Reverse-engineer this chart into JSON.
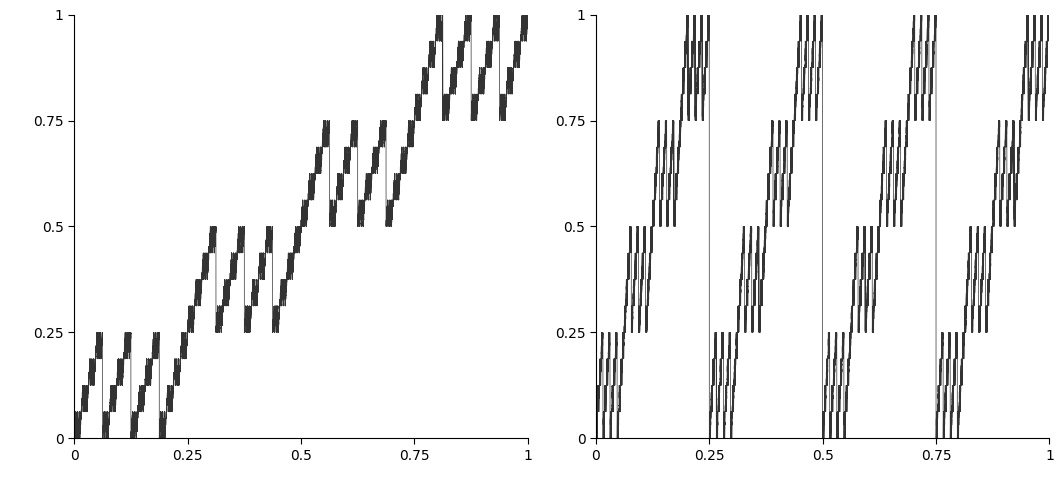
{
  "n_points": 200000,
  "xlim": [
    0,
    1
  ],
  "ylim": [
    0,
    1
  ],
  "xticks": [
    0,
    0.25,
    0.5,
    0.75,
    1
  ],
  "yticks": [
    0,
    0.25,
    0.5,
    0.75,
    1
  ],
  "xticklabels": [
    "0",
    "0.25",
    "0.5",
    "0.75",
    "1"
  ],
  "yticklabels": [
    "0",
    "0.25",
    "0.5",
    "0.75",
    "1"
  ],
  "line_color": "#333333",
  "linewidth": 0.5,
  "figsize": [
    10.6,
    4.87
  ],
  "dpi": 100,
  "n_bits_half": 20,
  "n_level": 3
}
